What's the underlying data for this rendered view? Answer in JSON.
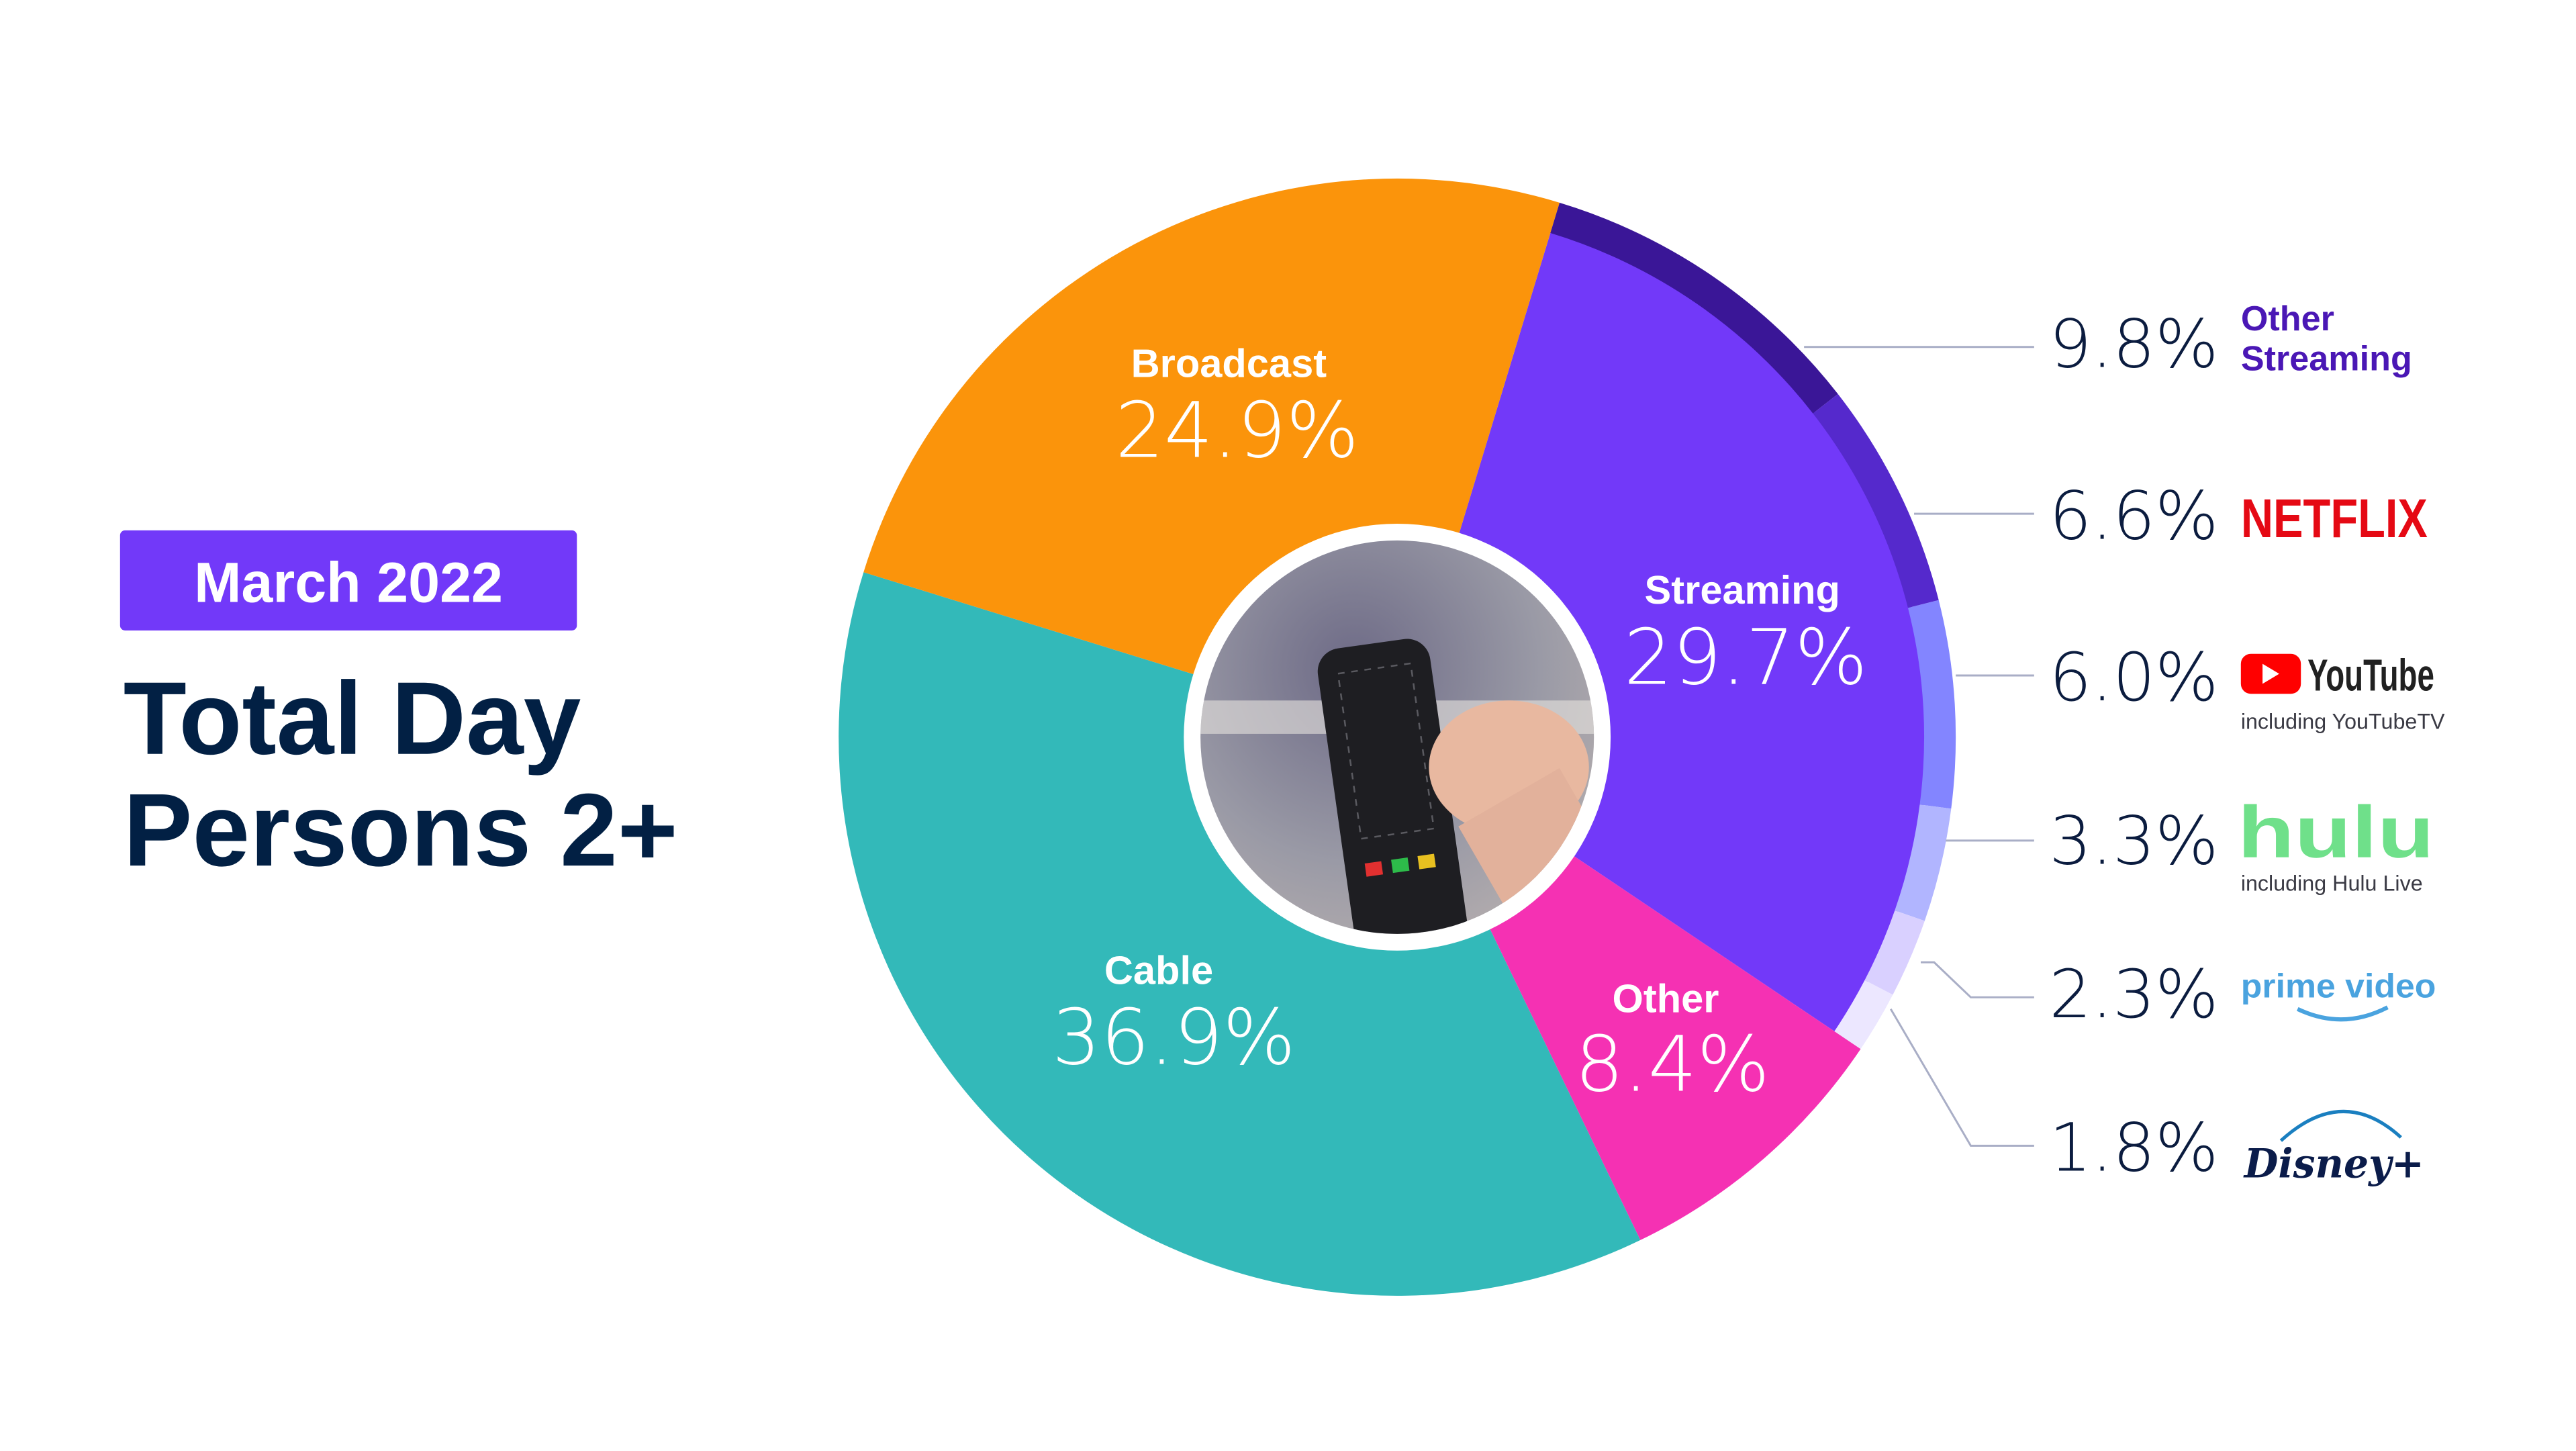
{
  "header": {
    "period_badge": "March 2022",
    "title_line1": "Total Day",
    "title_line2": "Persons 2+"
  },
  "colors": {
    "badge": "#7239F9",
    "title": "#022044",
    "leader_line": "#A9AEC6"
  },
  "chart_data": {
    "type": "pie",
    "style": "donut with image in center",
    "categories": [
      "Streaming",
      "Other",
      "Cable",
      "Broadcast"
    ],
    "values": [
      29.7,
      8.4,
      36.9,
      24.9
    ],
    "labels": [
      "29.7%",
      "8.4%",
      "36.9%",
      "24.9%"
    ],
    "colors": [
      "#7239F9",
      "#F531B3",
      "#33B9B9",
      "#FB940B"
    ],
    "unit": "%",
    "legend": "none",
    "breakdown": {
      "parent": "Streaming",
      "categories": [
        "Other Streaming",
        "Netflix",
        "YouTube",
        "Hulu",
        "Prime Video",
        "Disney+"
      ],
      "values": [
        9.8,
        6.6,
        6.0,
        3.3,
        2.3,
        1.8
      ],
      "labels": [
        "9.8%",
        "6.6%",
        "6.0%",
        "3.3%",
        "2.3%",
        "1.8%"
      ],
      "colors": [
        "#3A1697",
        "#5529CC",
        "#8385FF",
        "#B1B5FF",
        "#D9D0FF",
        "#ECE7FF"
      ],
      "brand_labels": [
        "Other\nStreaming",
        "NETFLIX",
        "YouTube",
        "hulu",
        "prime video",
        "Disney+"
      ],
      "notes": [
        "",
        "",
        "including YouTubeTV",
        "including Hulu Live",
        "",
        ""
      ],
      "brand_colors": [
        "#4A17B5",
        "#E50914",
        "#FF0000",
        "#6FE08A",
        "#4AA3DF",
        "#0B1C4A"
      ],
      "legend": "right"
    }
  }
}
